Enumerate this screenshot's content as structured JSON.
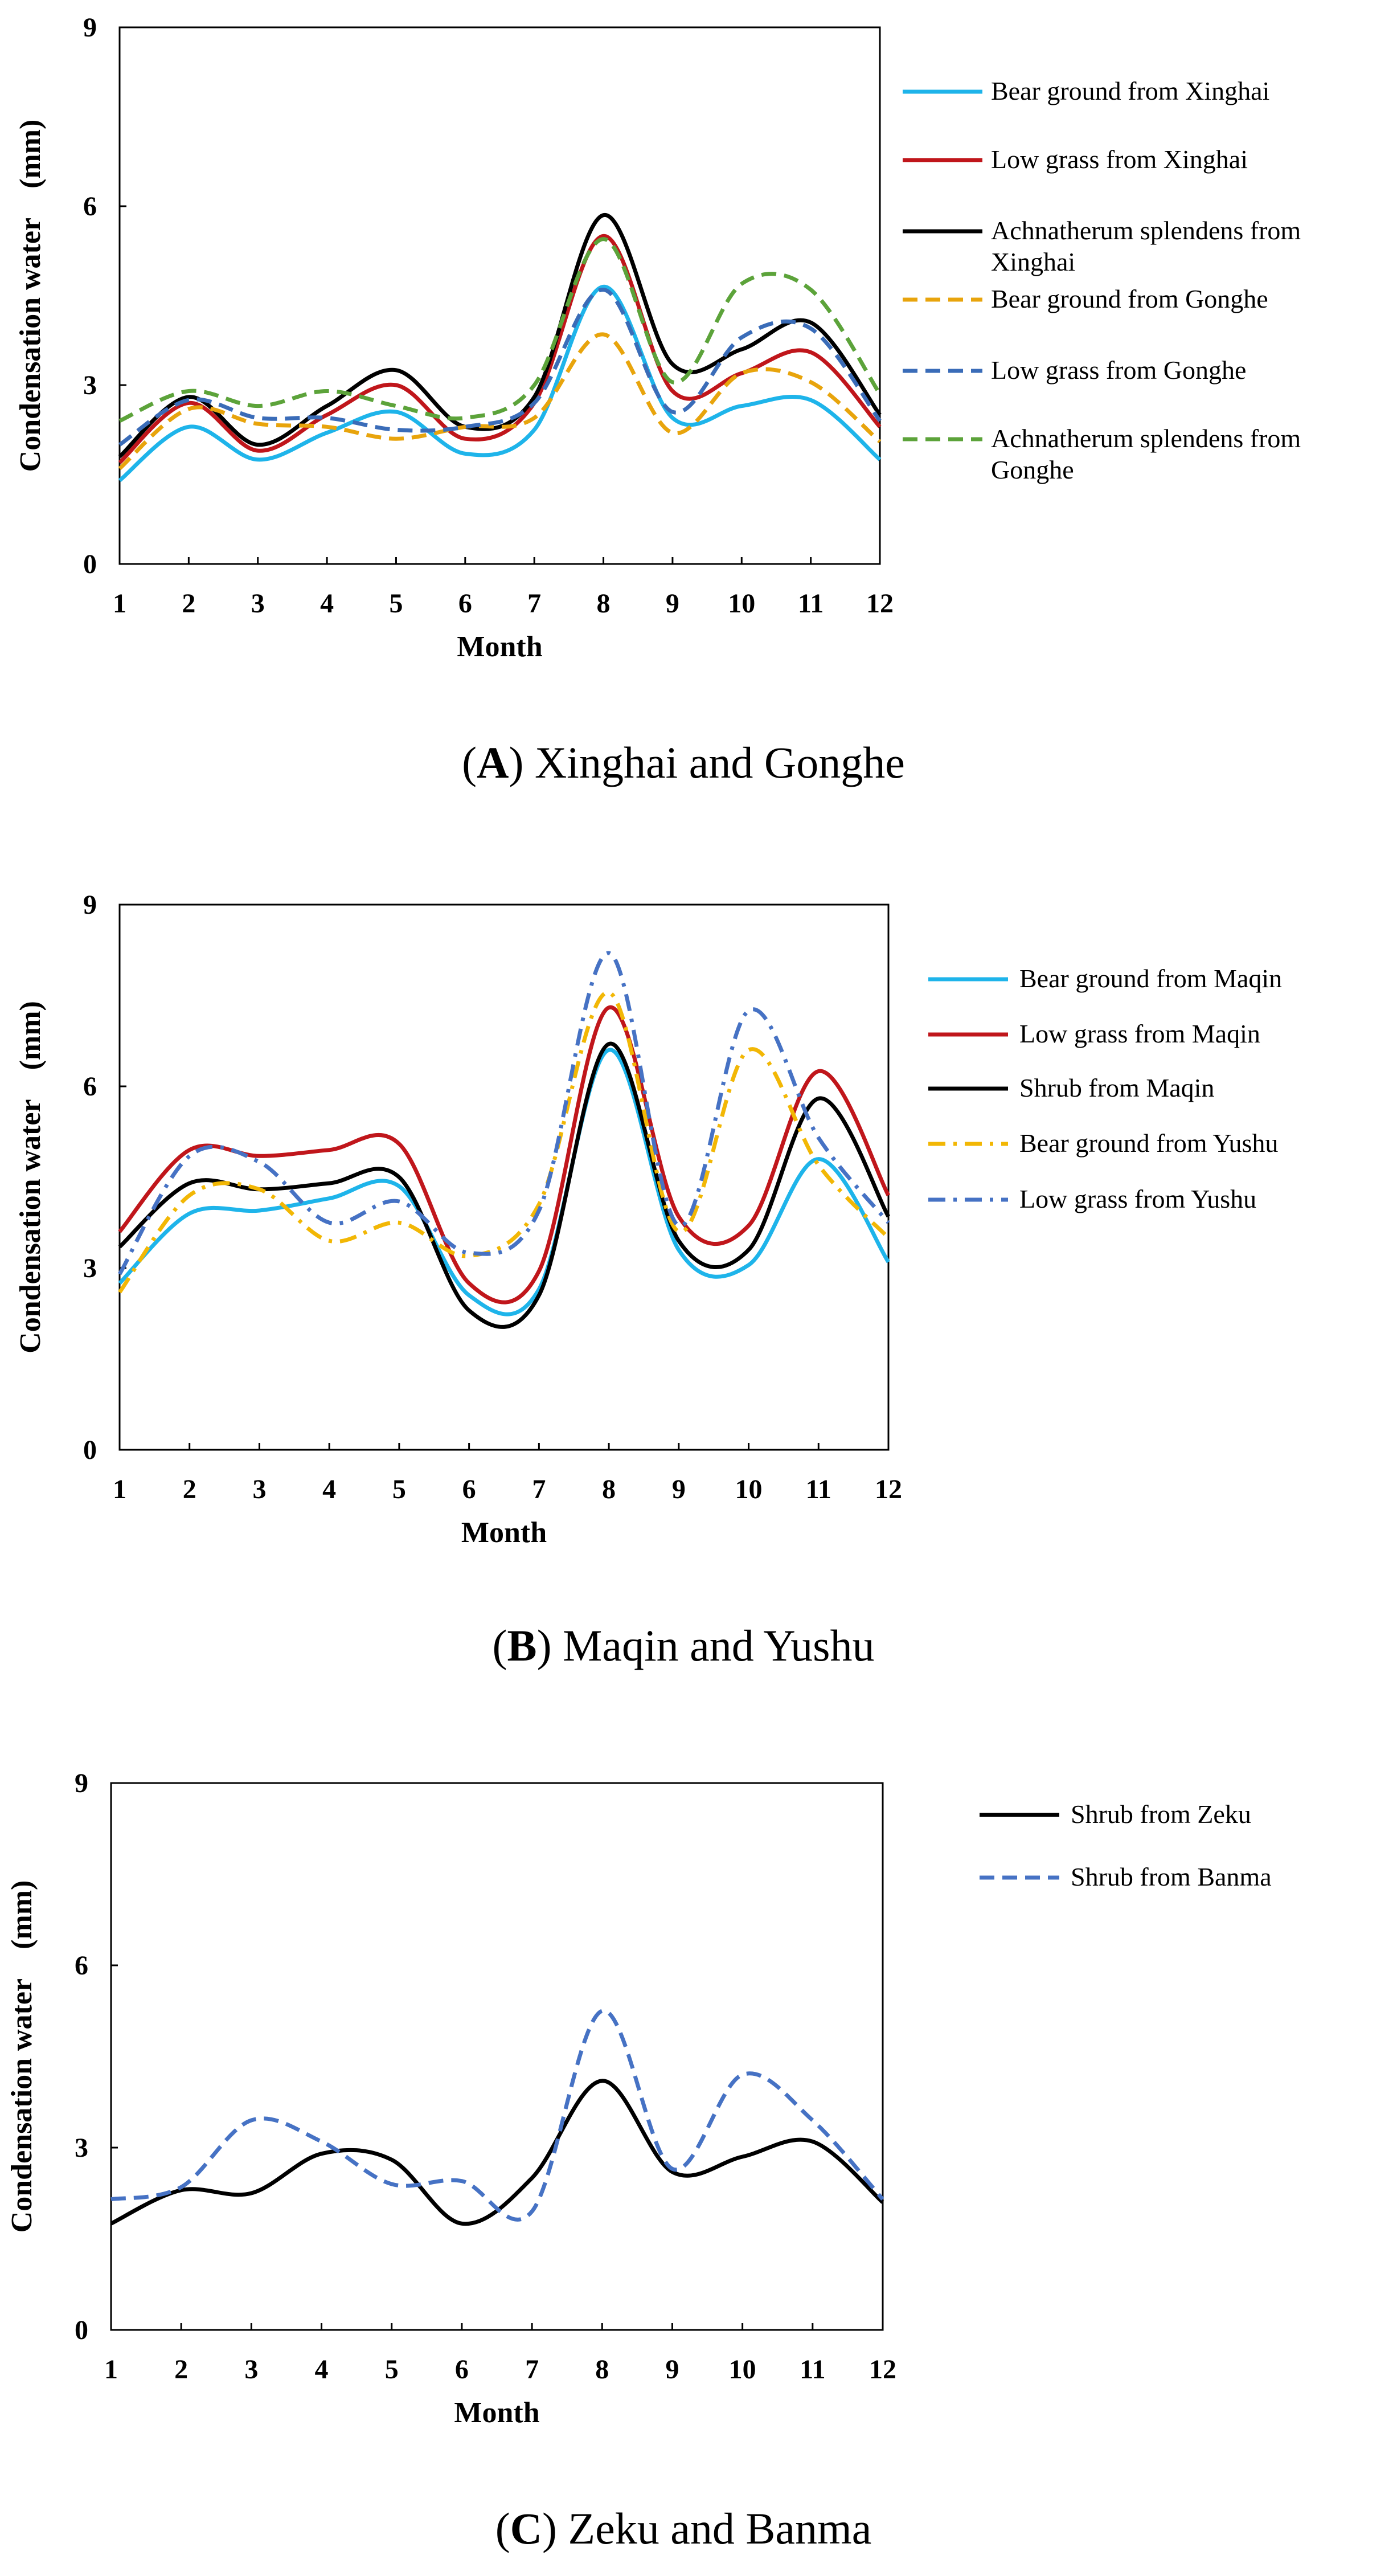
{
  "chart_data": [
    {
      "type": "line",
      "panel": "A",
      "caption_letter": "A",
      "caption_text": "Xinghai and Gonghe",
      "xlabel": "Month",
      "ylabel": "Condensation water　(mm)",
      "x": [
        1,
        2,
        3,
        4,
        5,
        6,
        7,
        8,
        9,
        10,
        11,
        12
      ],
      "ylim": [
        0,
        9
      ],
      "yticks": [
        0,
        3,
        6,
        9
      ],
      "grid": false,
      "legend_position": "right",
      "series": [
        {
          "name": "Bear ground from Xinghai",
          "lines": [
            "Bear ground from Xinghai"
          ],
          "color": "#1eb4ea",
          "dash": "solid",
          "values": [
            1.4,
            2.3,
            1.75,
            2.2,
            2.55,
            1.85,
            2.25,
            4.65,
            2.45,
            2.65,
            2.75,
            1.75
          ]
        },
        {
          "name": "Low grass from Xinghai",
          "lines": [
            "Low grass from Xinghai"
          ],
          "color": "#c0161b",
          "dash": "solid",
          "values": [
            1.7,
            2.7,
            1.9,
            2.5,
            3.0,
            2.1,
            2.7,
            5.5,
            2.9,
            3.2,
            3.55,
            2.3
          ]
        },
        {
          "name": "Achnatherum splendens from Xinghai",
          "lines": [
            "Achnatherum splendens from",
            "Xinghai"
          ],
          "color": "#000000",
          "dash": "solid",
          "values": [
            1.8,
            2.8,
            2.0,
            2.65,
            3.25,
            2.3,
            2.8,
            5.85,
            3.35,
            3.6,
            4.05,
            2.5
          ]
        },
        {
          "name": "Bear ground from Gonghe",
          "lines": [
            "Bear ground from Gonghe"
          ],
          "color": "#e8a40c",
          "dash": "dashed",
          "values": [
            1.6,
            2.6,
            2.35,
            2.3,
            2.1,
            2.3,
            2.45,
            3.85,
            2.2,
            3.2,
            3.05,
            2.05
          ]
        },
        {
          "name": "Low grass from Gonghe",
          "lines": [
            "Low grass from Gonghe"
          ],
          "color": "#3a6cb8",
          "dash": "dashed",
          "values": [
            2.0,
            2.75,
            2.45,
            2.45,
            2.25,
            2.3,
            2.7,
            4.6,
            2.55,
            3.8,
            3.95,
            2.4
          ]
        },
        {
          "name": "Achnatherum splendens from Gonghe",
          "lines": [
            "Achnatherum splendens from",
            "Gonghe"
          ],
          "color": "#5ca33a",
          "dash": "dashed",
          "values": [
            2.4,
            2.9,
            2.65,
            2.9,
            2.65,
            2.45,
            3.0,
            5.45,
            3.05,
            4.7,
            4.6,
            2.85
          ]
        }
      ]
    },
    {
      "type": "line",
      "panel": "B",
      "caption_letter": "B",
      "caption_text": "Maqin and Yushu",
      "xlabel": "Month",
      "ylabel": "Condensation water　(mm)",
      "x": [
        1,
        2,
        3,
        4,
        5,
        6,
        7,
        8,
        9,
        10,
        11,
        12
      ],
      "ylim": [
        0,
        9
      ],
      "yticks": [
        0,
        3,
        6,
        9
      ],
      "grid": false,
      "legend_position": "right",
      "series": [
        {
          "name": "Bear ground from Maqin",
          "lines": [
            "Bear ground from Maqin"
          ],
          "color": "#1eb4ea",
          "dash": "solid",
          "values": [
            2.75,
            3.9,
            3.95,
            4.15,
            4.35,
            2.55,
            2.65,
            6.6,
            3.3,
            3.05,
            4.8,
            3.1
          ]
        },
        {
          "name": "Low grass from Maqin",
          "lines": [
            "Low grass from Maqin"
          ],
          "color": "#c0161b",
          "dash": "solid",
          "values": [
            3.6,
            4.95,
            4.85,
            4.95,
            5.05,
            2.75,
            2.95,
            7.3,
            3.85,
            3.7,
            6.25,
            4.2
          ]
        },
        {
          "name": "Shrub from Maqin",
          "lines": [
            "Shrub from Maqin"
          ],
          "color": "#000000",
          "dash": "solid",
          "values": [
            3.35,
            4.4,
            4.3,
            4.4,
            4.5,
            2.3,
            2.55,
            6.7,
            3.45,
            3.3,
            5.8,
            3.85
          ]
        },
        {
          "name": "Bear ground from Yushu",
          "lines": [
            "Bear ground from Yushu"
          ],
          "color": "#f2b705",
          "dash": "dashdot",
          "values": [
            2.6,
            4.2,
            4.3,
            3.45,
            3.75,
            3.2,
            4.05,
            7.55,
            3.6,
            6.6,
            4.7,
            3.5
          ]
        },
        {
          "name": "Low grass from Yushu",
          "lines": [
            "Low grass from Yushu"
          ],
          "color": "#4672c4",
          "dash": "dashdot",
          "values": [
            2.9,
            4.85,
            4.75,
            3.75,
            4.1,
            3.25,
            3.95,
            8.2,
            3.7,
            7.25,
            5.15,
            3.75
          ]
        }
      ]
    },
    {
      "type": "line",
      "panel": "C",
      "caption_letter": "C",
      "caption_text": "Zeku and Banma",
      "xlabel": "Month",
      "ylabel": "Condensation water　(mm)",
      "x": [
        1,
        2,
        3,
        4,
        5,
        6,
        7,
        8,
        9,
        10,
        11,
        12
      ],
      "ylim": [
        0,
        9
      ],
      "yticks": [
        0,
        3,
        6,
        9
      ],
      "grid": false,
      "legend_position": "right",
      "series": [
        {
          "name": "Shrub from Zeku",
          "lines": [
            "Shrub from Zeku"
          ],
          "color": "#000000",
          "dash": "solid",
          "values": [
            1.75,
            2.3,
            2.25,
            2.9,
            2.8,
            1.75,
            2.5,
            4.1,
            2.6,
            2.85,
            3.1,
            2.1
          ]
        },
        {
          "name": "Shrub from Banma",
          "lines": [
            "Shrub from Banma"
          ],
          "color": "#4672c4",
          "dash": "dashed",
          "values": [
            2.15,
            2.35,
            3.45,
            3.1,
            2.4,
            2.45,
            1.95,
            5.25,
            2.65,
            4.2,
            3.45,
            2.15
          ]
        }
      ]
    }
  ]
}
